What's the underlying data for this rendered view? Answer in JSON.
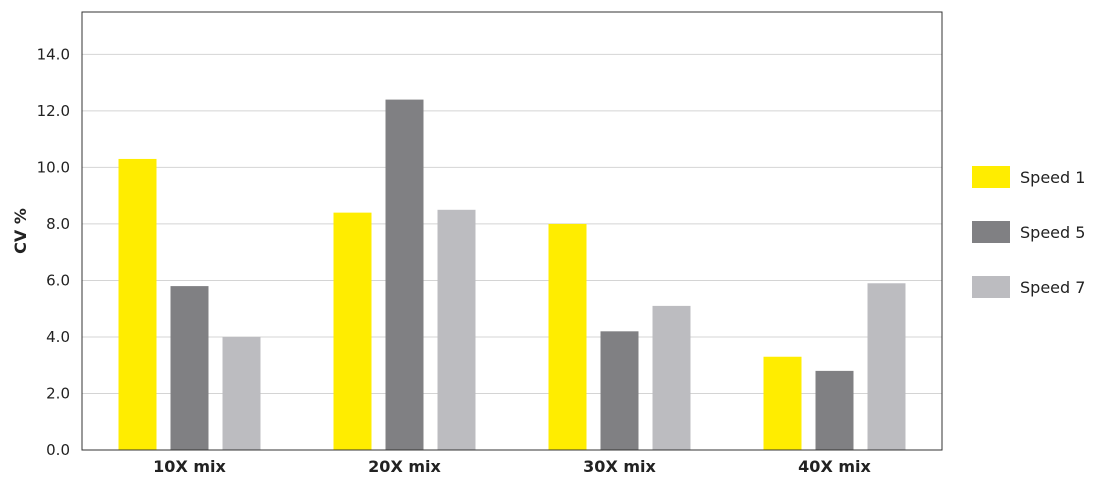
{
  "chart_data": {
    "type": "bar",
    "title": "",
    "xlabel": "",
    "ylabel": "CV %",
    "ylim": [
      0,
      15.5
    ],
    "yticks": [
      "0.0",
      "2.0",
      "4.0",
      "6.0",
      "8.0",
      "10.0",
      "12.0",
      "14.0"
    ],
    "grid": true,
    "legend_position": "right",
    "categories": [
      "10X mix",
      "20X mix",
      "30X mix",
      "40X mix"
    ],
    "series": [
      {
        "name": "Speed 1",
        "color": "#FFED00",
        "values": [
          10.3,
          8.4,
          8.0,
          3.3
        ]
      },
      {
        "name": "Speed 5",
        "color": "#808083",
        "values": [
          5.8,
          12.4,
          4.2,
          2.8
        ]
      },
      {
        "name": "Speed 7",
        "color": "#BCBCC0",
        "values": [
          4.0,
          8.5,
          5.1,
          5.9
        ]
      }
    ]
  }
}
